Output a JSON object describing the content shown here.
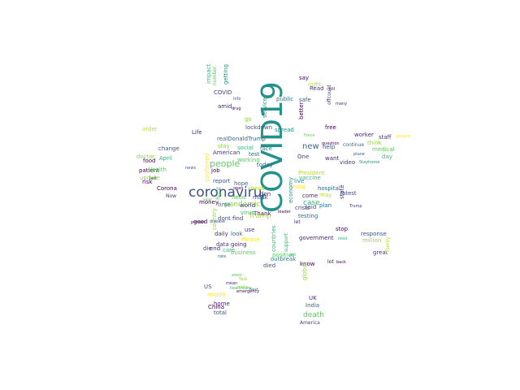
{
  "words": [
    {
      "t": "COVID19",
      "c": "#21918c"
    },
    {
      "t": "coronaviru",
      "c": "#3b528b"
    },
    {
      "t": "new",
      "c": "#31688e"
    },
    {
      "t": "people",
      "c": "#5ec962"
    },
    {
      "t": "pandemic",
      "c": "#90d743"
    },
    {
      "t": "Trump",
      "c": "#b5de2b"
    },
    {
      "t": "case",
      "c": "#35b779"
    },
    {
      "t": "death",
      "c": "#5ec962"
    },
    {
      "t": "lockdown",
      "c": "#3b528b"
    },
    {
      "t": "realDonaldTrump",
      "c": "#31688e"
    },
    {
      "t": "American",
      "c": "#443a83"
    },
    {
      "t": "social",
      "c": "#35b779"
    },
    {
      "t": "stay",
      "c": "#90d743"
    },
    {
      "t": "test",
      "c": "#31688e"
    },
    {
      "t": "working",
      "c": "#5ec962"
    },
    {
      "t": "spread",
      "c": "#21918c"
    },
    {
      "t": "face",
      "c": "#26828e"
    },
    {
      "t": "live",
      "c": "#21918c"
    },
    {
      "t": "public",
      "c": "#2c728e"
    },
    {
      "t": "One",
      "c": "#443a83"
    },
    {
      "t": "free",
      "c": "#440154"
    },
    {
      "t": "help",
      "c": "#3b528b"
    },
    {
      "t": "want",
      "c": "#482878"
    },
    {
      "t": "President",
      "c": "#b5de2b"
    },
    {
      "t": "vaccine",
      "c": "#35b779"
    },
    {
      "t": "thing",
      "c": "#fde725"
    },
    {
      "t": "hospital",
      "c": "#31688e"
    },
    {
      "t": "latest",
      "c": "#3b528b"
    },
    {
      "t": "video",
      "c": "#443a83"
    },
    {
      "t": "worker",
      "c": "#482878"
    },
    {
      "t": "day",
      "c": "#35b779"
    },
    {
      "t": "medical",
      "c": "#5ec962"
    },
    {
      "t": "think",
      "c": "#90d743"
    },
    {
      "t": "staff",
      "c": "#443a83"
    },
    {
      "t": "come",
      "c": "#482878"
    },
    {
      "t": "said",
      "c": "#3b528b"
    },
    {
      "t": "may",
      "c": "#b5de2b"
    },
    {
      "t": "crisis",
      "c": "#443a83"
    },
    {
      "t": "plan",
      "c": "#2c728e"
    },
    {
      "t": "testing",
      "c": "#31688e"
    },
    {
      "t": "stop",
      "c": "#440154"
    },
    {
      "t": "response",
      "c": "#3b528b"
    },
    {
      "t": "million",
      "c": "#90d743"
    },
    {
      "t": "great",
      "c": "#443a83"
    },
    {
      "t": "know",
      "c": "#440154"
    },
    {
      "t": "government",
      "c": "#482878"
    },
    {
      "t": "positive",
      "c": "#5ec962"
    },
    {
      "t": "outbreak",
      "c": "#26828e"
    },
    {
      "t": "died",
      "c": "#3b528b"
    },
    {
      "t": "UK",
      "c": "#482878"
    },
    {
      "t": "India",
      "c": "#31688e"
    },
    {
      "t": "America",
      "c": "#443a83"
    },
    {
      "t": "global",
      "c": "#90d743"
    },
    {
      "t": "today",
      "c": "#31688e"
    },
    {
      "t": "world",
      "c": "#443a83"
    },
    {
      "t": "hope",
      "c": "#31688e"
    },
    {
      "t": "check",
      "c": "#b5de2b"
    },
    {
      "t": "don",
      "c": "#482878"
    },
    {
      "t": "report",
      "c": "#3b528b"
    },
    {
      "t": "job",
      "c": "#440154"
    },
    {
      "t": "time",
      "c": "#31688e"
    },
    {
      "t": "virus",
      "c": "#35b779"
    },
    {
      "t": "need",
      "c": "#5ec962"
    },
    {
      "t": "mask",
      "c": "#443a83"
    },
    {
      "t": "Thank",
      "c": "#482878"
    },
    {
      "t": "dont",
      "c": "#3b528b"
    },
    {
      "t": "find",
      "c": "#443a83"
    },
    {
      "t": "use",
      "c": "#443a83"
    },
    {
      "t": "look",
      "c": "#31688e"
    },
    {
      "t": "going",
      "c": "#482878"
    },
    {
      "t": "Please",
      "c": "#fde725"
    },
    {
      "t": "business",
      "c": "#5ec962"
    },
    {
      "t": "daily",
      "c": "#482878"
    },
    {
      "t": "data",
      "c": "#443a83"
    },
    {
      "t": "care",
      "c": "#35b779"
    },
    {
      "t": "end",
      "c": "#482878"
    },
    {
      "t": "die",
      "c": "#443a83"
    },
    {
      "t": "good",
      "c": "#440154"
    },
    {
      "t": "money",
      "c": "#440154"
    },
    {
      "t": "April",
      "c": "#35b779"
    },
    {
      "t": "food",
      "c": "#440154"
    },
    {
      "t": "doctor",
      "c": "#90d743"
    },
    {
      "t": "patient",
      "c": "#440154"
    },
    {
      "t": "Health",
      "c": "#5ec962"
    },
    {
      "t": "update",
      "c": "#90d743"
    },
    {
      "t": "risk",
      "c": "#440154"
    },
    {
      "t": "Corona",
      "c": "#440154"
    },
    {
      "t": "Life",
      "c": "#482878"
    },
    {
      "t": "order",
      "c": "#b5de2b"
    },
    {
      "t": "change",
      "c": "#3b528b"
    },
    {
      "t": "Now",
      "c": "#443a83"
    },
    {
      "t": "US",
      "c": "#3b528b"
    },
    {
      "t": "China",
      "c": "#440154"
    },
    {
      "t": "home",
      "c": "#482878"
    },
    {
      "t": "total",
      "c": "#3b528b"
    },
    {
      "t": "month",
      "c": "#fde725"
    },
    {
      "t": "COVID",
      "c": "#443a83"
    },
    {
      "t": "amid",
      "c": "#482878"
    },
    {
      "t": "impact",
      "c": "#35b779"
    },
    {
      "t": "getting",
      "c": "#21918c"
    },
    {
      "t": "number",
      "c": "#5ec962"
    },
    {
      "t": "go",
      "c": "#90d743"
    },
    {
      "t": "service",
      "c": "#21918c"
    },
    {
      "t": "say",
      "c": "#440154"
    },
    {
      "t": "right",
      "c": "#b5de2b"
    },
    {
      "t": "Read",
      "c": "#443a83"
    },
    {
      "t": "safe",
      "c": "#3b528b"
    },
    {
      "t": "better",
      "c": "#440154"
    },
    {
      "t": "countries",
      "c": "#35b779"
    },
    {
      "t": "economy",
      "c": "#21918c"
    },
    {
      "t": "support",
      "c": "#35b779"
    },
    {
      "t": "let",
      "c": "#482878"
    },
    {
      "t": "leader",
      "c": "#440154"
    },
    {
      "t": "confirmed",
      "c": "#fde725"
    },
    {
      "t": "fight",
      "c": "#5ec962"
    },
    {
      "t": "country",
      "c": "#90d743"
    },
    {
      "t": "state",
      "c": "#443a83"
    },
    {
      "t": "family",
      "c": "#b5de2b"
    },
    {
      "t": "continue",
      "c": "#31688e"
    },
    {
      "t": "lot",
      "c": "#440154"
    },
    {
      "t": "got",
      "c": "#35b779"
    },
    {
      "t": "offcould",
      "c": "#443a83"
    },
    {
      "t": "week",
      "c": "#5ec962"
    },
    {
      "t": "emergency",
      "c": "#440154"
    },
    {
      "t": "mean",
      "c": "#482878"
    },
    {
      "t": "Task",
      "c": "#90d743"
    },
    {
      "t": "Force",
      "c": "#5ec962"
    },
    {
      "t": "info",
      "c": "#3b528b"
    },
    {
      "t": "drug",
      "c": "#440154"
    },
    {
      "t": "plane",
      "c": "#31688e"
    },
    {
      "t": "Stayhome",
      "c": "#21918c"
    },
    {
      "t": "Trump",
      "c": "#443a83"
    },
    {
      "t": "people",
      "c": "#fde725"
    },
    {
      "t": "question",
      "c": "#440154"
    },
    {
      "t": "healthcare",
      "c": "#35b779"
    },
    {
      "t": "disease",
      "c": "#3b528b"
    },
    {
      "t": "person",
      "c": "#440154"
    },
    {
      "t": "rate",
      "c": "#31688e"
    },
    {
      "t": "last",
      "c": "#443a83"
    },
    {
      "t": "many",
      "c": "#482878"
    },
    {
      "t": "back",
      "c": "#440154"
    },
    {
      "t": "read",
      "c": "#35b779"
    },
    {
      "t": "kill",
      "c": "#440154"
    },
    {
      "t": "make",
      "c": "#90d743"
    },
    {
      "t": "next",
      "c": "#31688e"
    },
    {
      "t": "news",
      "c": "#3b528b"
    },
    {
      "t": "year",
      "c": "#5ec962"
    },
    {
      "t": "open",
      "c": "#440154"
    },
    {
      "t": "close",
      "c": "#482878"
    },
    {
      "t": "tell",
      "c": "#443a83"
    }
  ]
}
